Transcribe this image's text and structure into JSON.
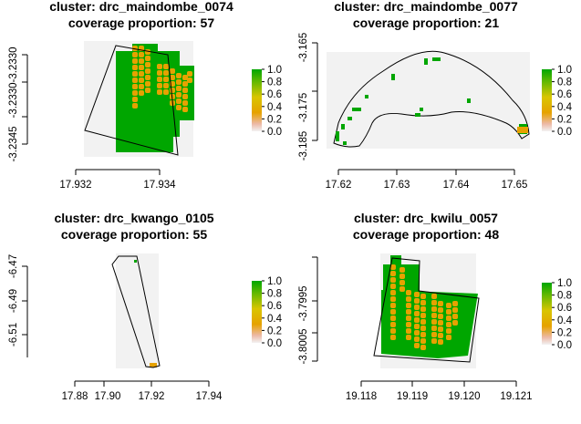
{
  "chart_data": [
    {
      "type": "heatmap",
      "title": "cluster: drc_maindombe_0074",
      "subtitle": "coverage proportion: 57",
      "x_ticks": [
        "17.932",
        "17.934"
      ],
      "y_ticks": [
        "-3.2330",
        "-3.2330",
        "-3.2345"
      ],
      "legend_ticks": [
        "0.0",
        "0.2",
        "0.4",
        "0.6",
        "0.8",
        "1.0"
      ],
      "coverage_proportion": 57
    },
    {
      "type": "heatmap",
      "title": "cluster: drc_maindombe_0077",
      "subtitle": "coverage proportion: 21",
      "x_ticks": [
        "17.62",
        "17.63",
        "17.64",
        "17.65"
      ],
      "y_ticks": [
        "-3.165",
        "-3.175",
        "-3.185"
      ],
      "legend_ticks": [
        "0.0",
        "0.2",
        "0.4",
        "0.6",
        "0.8",
        "1.0"
      ],
      "coverage_proportion": 21
    },
    {
      "type": "heatmap",
      "title": "cluster: drc_kwango_0105",
      "subtitle": "coverage proportion: 55",
      "x_ticks": [
        "17.88",
        "17.90",
        "17.92",
        "17.94"
      ],
      "y_ticks": [
        "-6.47",
        "-6.49",
        "-6.51"
      ],
      "legend_ticks": [
        "0.0",
        "0.2",
        "0.4",
        "0.6",
        "0.8",
        "1.0"
      ],
      "coverage_proportion": 55
    },
    {
      "type": "heatmap",
      "title": "cluster: drc_kwilu_0057",
      "subtitle": "coverage proportion: 48",
      "x_ticks": [
        "19.118",
        "19.119",
        "19.120",
        "19.121"
      ],
      "y_ticks": [
        "-3.7995",
        "-3.8005"
      ],
      "legend_ticks": [
        "0.0",
        "0.2",
        "0.4",
        "0.6",
        "0.8",
        "1.0"
      ],
      "coverage_proportion": 48
    }
  ],
  "colors": {
    "full_cover": "#00a600",
    "partial_cover": "#e6a200",
    "no_cover": "#f2f2f2",
    "legend_high": "#00a600",
    "legend_mid": "#e6e600",
    "legend_low": "#f2f2f2"
  }
}
